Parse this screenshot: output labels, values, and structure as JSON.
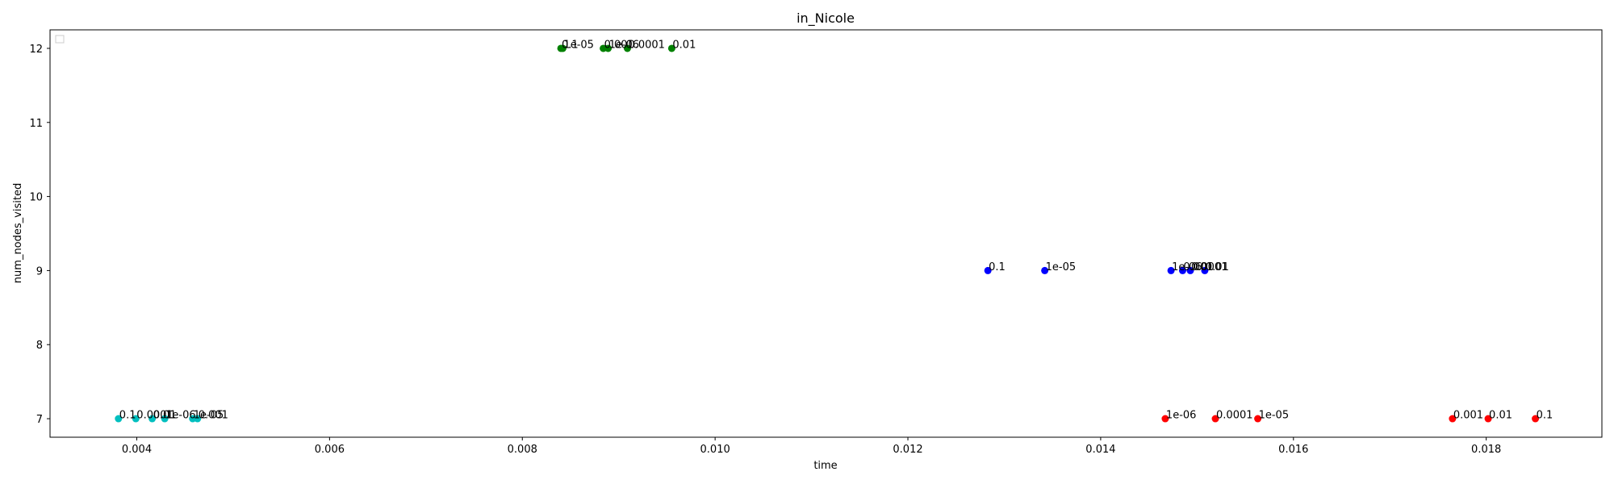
{
  "chart_data": {
    "type": "scatter",
    "title": "in_Nicole",
    "xlabel": "time",
    "ylabel": "num_nodes_visited",
    "xlim": [
      0.0031,
      0.0192
    ],
    "ylim": [
      6.75,
      12.25
    ],
    "x_ticks": [
      "0.004",
      "0.006",
      "0.008",
      "0.010",
      "0.012",
      "0.014",
      "0.016",
      "0.018"
    ],
    "y_ticks": [
      "7",
      "8",
      "9",
      "10",
      "11",
      "12"
    ],
    "grid": false,
    "legend": "top-left (empty)",
    "series": [
      {
        "color": "#00bfbf",
        "points": [
          {
            "x": 0.00381,
            "y": 7,
            "label": "0.1"
          },
          {
            "x": 0.00399,
            "y": 7,
            "label": "0.0001"
          },
          {
            "x": 0.00416,
            "y": 7,
            "label": "0.01"
          },
          {
            "x": 0.00429,
            "y": 7,
            "label": "1e-06"
          },
          {
            "x": 0.00458,
            "y": 7,
            "label": "1e-05"
          },
          {
            "x": 0.00463,
            "y": 7,
            "label": "0.001"
          }
        ]
      },
      {
        "color": "#008000",
        "points": [
          {
            "x": 0.0084,
            "y": 12,
            "label": "0.1"
          },
          {
            "x": 0.00842,
            "y": 12,
            "label": "1e-05"
          },
          {
            "x": 0.00884,
            "y": 12,
            "label": "0.001"
          },
          {
            "x": 0.00889,
            "y": 12,
            "label": "1e-06"
          },
          {
            "x": 0.00909,
            "y": 12,
            "label": "0.0001"
          },
          {
            "x": 0.00955,
            "y": 12,
            "label": "0.01"
          }
        ]
      },
      {
        "color": "#0000ff",
        "points": [
          {
            "x": 0.01283,
            "y": 9,
            "label": "0.1"
          },
          {
            "x": 0.01342,
            "y": 9,
            "label": "1e-05"
          },
          {
            "x": 0.01473,
            "y": 9,
            "label": "1e-06"
          },
          {
            "x": 0.01485,
            "y": 9,
            "label": "0.001"
          },
          {
            "x": 0.01493,
            "y": 9,
            "label": "0.0001"
          },
          {
            "x": 0.01508,
            "y": 9,
            "label": "0.01"
          }
        ]
      },
      {
        "color": "#ff0000",
        "points": [
          {
            "x": 0.01467,
            "y": 7,
            "label": "1e-06"
          },
          {
            "x": 0.01519,
            "y": 7,
            "label": "0.0001"
          },
          {
            "x": 0.01563,
            "y": 7,
            "label": "1e-05"
          },
          {
            "x": 0.01765,
            "y": 7,
            "label": "0.001"
          },
          {
            "x": 0.01802,
            "y": 7,
            "label": "0.01"
          },
          {
            "x": 0.01851,
            "y": 7,
            "label": "0.1"
          }
        ]
      }
    ]
  }
}
